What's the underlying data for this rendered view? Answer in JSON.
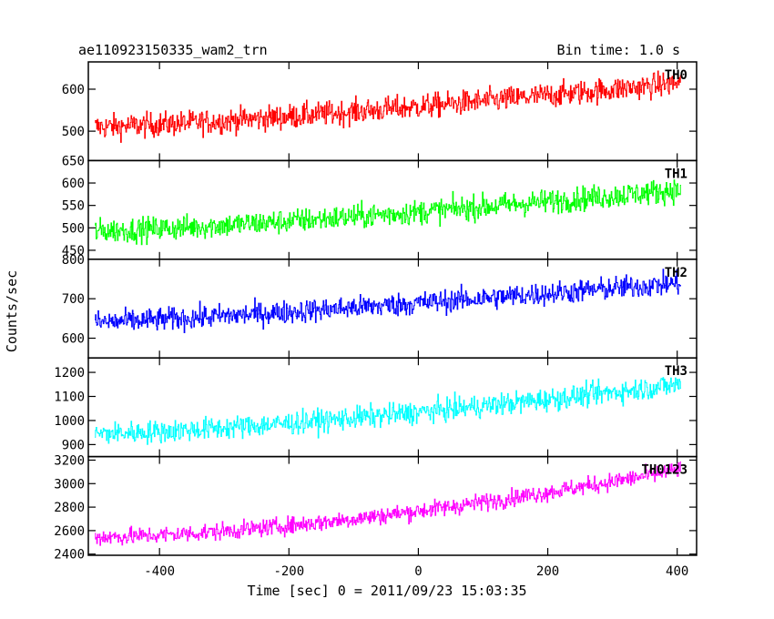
{
  "chart_data": {
    "type": "line",
    "title_left": "ae110923150335_wam2_trn",
    "title_right": "Bin time: 1.0 s",
    "xlabel": "Time [sec] 0 = 2011/09/23 15:03:35",
    "ylabel": "Counts/sec",
    "xlim": [
      -510,
      430
    ],
    "x_range": [
      -500,
      405
    ],
    "x_ticks": [
      -400,
      -200,
      0,
      200,
      400
    ],
    "panels": [
      {
        "name": "TH0",
        "color": "#ff0000",
        "ylim": [
          430,
          665
        ],
        "y_ticks": [
          500,
          600
        ],
        "y_start": 510,
        "y_end": 615,
        "y_end_curve": 1.3,
        "noise": 28
      },
      {
        "name": "TH1",
        "color": "#00ff00",
        "ylim": [
          430,
          650
        ],
        "y_ticks": [
          450,
          500,
          550,
          600,
          650
        ],
        "y_start": 493,
        "y_end": 585,
        "y_end_curve": 1.3,
        "noise": 26
      },
      {
        "name": "TH2",
        "color": "#0000ff",
        "ylim": [
          550,
          800
        ],
        "y_ticks": [
          600,
          700,
          800
        ],
        "y_start": 640,
        "y_end": 740,
        "y_end_curve": 1.2,
        "noise": 28
      },
      {
        "name": "TH3",
        "color": "#00ffff",
        "ylim": [
          850,
          1260
        ],
        "y_ticks": [
          900,
          1000,
          1100,
          1200
        ],
        "y_start": 945,
        "y_end": 1150,
        "y_end_curve": 1.4,
        "noise": 45
      },
      {
        "name": "TH0123",
        "color": "#ff00ff",
        "ylim": [
          2390,
          3230
        ],
        "y_ticks": [
          2400,
          2600,
          2800,
          3000,
          3200
        ],
        "y_start": 2545,
        "y_end": 3120,
        "y_end_curve": 1.6,
        "noise": 70
      }
    ]
  }
}
